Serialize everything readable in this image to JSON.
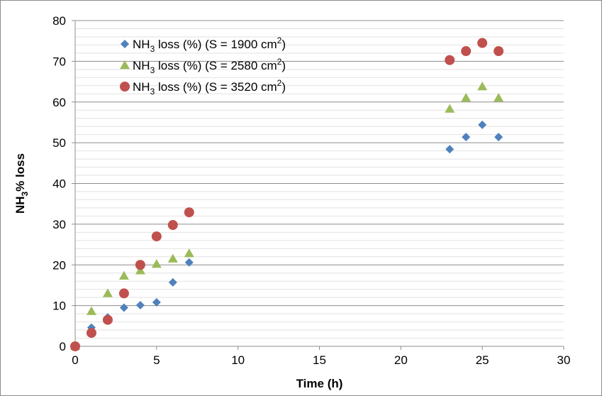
{
  "chart_data": {
    "type": "scatter",
    "xlabel": "Time (h)",
    "ylabel": {
      "prefix": "NH",
      "sub": "3",
      "suffix": "% loss"
    },
    "xlim": [
      0,
      30
    ],
    "ylim": [
      0,
      80
    ],
    "xticks": [
      0,
      5,
      10,
      15,
      20,
      25,
      30
    ],
    "yticks": [
      0,
      10,
      20,
      30,
      40,
      50,
      60,
      70,
      80
    ],
    "grid": true,
    "legend_position": "top-left",
    "series": [
      {
        "name": "NH3 loss (%) (S = 1900 cm2)",
        "label_parts": {
          "prefix": "NH",
          "sub": "3",
          "mid": " loss (%) (S = 1900 cm",
          "sup": "2",
          "suffix": ")"
        },
        "marker": "diamond",
        "color": "#4f81bd",
        "x": [
          0,
          1,
          2,
          3,
          4,
          5,
          6,
          7,
          23,
          24,
          25,
          26
        ],
        "y": [
          0,
          4.6,
          7.1,
          9.5,
          10.1,
          10.8,
          15.7,
          20.6,
          48.4,
          51.4,
          54.4,
          51.4
        ]
      },
      {
        "name": "NH3 loss (%) (S = 2580 cm2)",
        "label_parts": {
          "prefix": "NH",
          "sub": "3",
          "mid": " loss (%) (S = 2580 cm",
          "sup": "2",
          "suffix": ")"
        },
        "marker": "triangle",
        "color": "#9bbb59",
        "x": [
          0,
          1,
          2,
          3,
          4,
          5,
          6,
          7,
          23,
          24,
          25,
          26
        ],
        "y": [
          0,
          8.6,
          13.0,
          17.3,
          18.6,
          20.2,
          21.5,
          22.8,
          58.3,
          61.0,
          63.8,
          61.0
        ]
      },
      {
        "name": "NH3 loss (%) (S = 3520 cm2)",
        "label_parts": {
          "prefix": "NH",
          "sub": "3",
          "mid": " loss (%) (S = 3520 cm",
          "sup": "2",
          "suffix": ")"
        },
        "marker": "circle",
        "color": "#c0504d",
        "x": [
          0,
          1,
          2,
          3,
          4,
          5,
          6,
          7,
          23,
          24,
          25,
          26
        ],
        "y": [
          0,
          3.3,
          6.5,
          13.0,
          20.0,
          27.0,
          29.8,
          32.9,
          70.3,
          72.5,
          74.5,
          72.5
        ]
      }
    ]
  }
}
